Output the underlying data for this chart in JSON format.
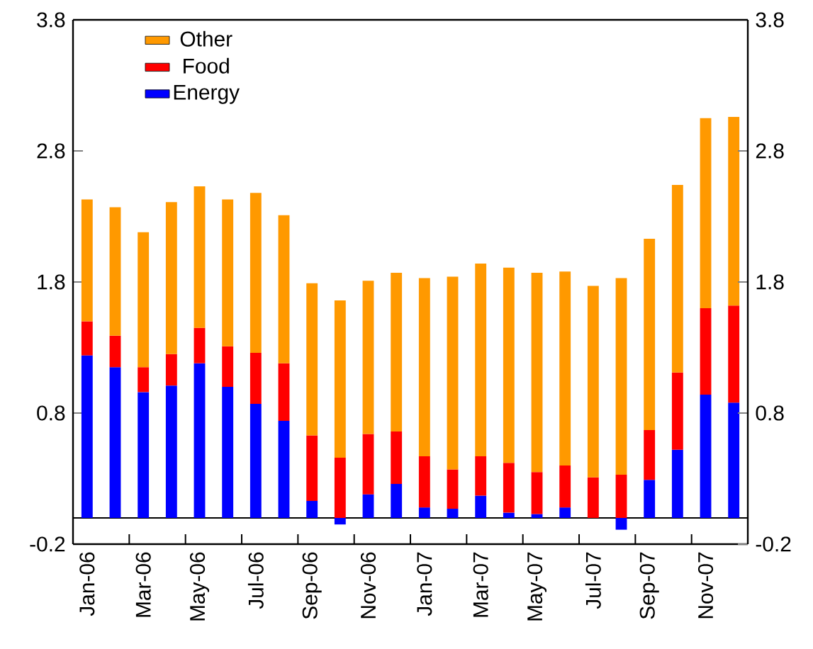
{
  "chart_data": {
    "type": "bar",
    "stacked": true,
    "categories": [
      "Jan-06",
      null,
      "Mar-06",
      null,
      "May-06",
      null,
      "Jul-06",
      null,
      "Sep-06",
      null,
      "Nov-06",
      null,
      "Jan-07",
      null,
      "Mar-07",
      null,
      "May-07",
      null,
      "Jul-07",
      null,
      "Sep-07",
      null,
      "Nov-07",
      null
    ],
    "series": [
      {
        "name": "Energy",
        "color": "#0000ff",
        "values": [
          1.24,
          1.15,
          0.96,
          1.01,
          1.18,
          1.0,
          0.87,
          0.74,
          0.13,
          -0.05,
          0.18,
          0.26,
          0.08,
          0.07,
          0.17,
          0.04,
          0.03,
          0.08,
          0,
          -0.09,
          0.29,
          0.52,
          0.94,
          0.88
        ]
      },
      {
        "name": "Food",
        "color": "#ff0000",
        "values": [
          0.26,
          0.24,
          0.19,
          0.24,
          0.27,
          0.31,
          0.39,
          0.44,
          0.5,
          0.46,
          0.46,
          0.4,
          0.39,
          0.3,
          0.3,
          0.38,
          0.32,
          0.32,
          0.31,
          0.33,
          0.38,
          0.59,
          0.66,
          0.74
        ]
      },
      {
        "name": "Other",
        "color": "#ff9900",
        "values": [
          0.93,
          0.98,
          1.03,
          1.16,
          1.08,
          1.12,
          1.22,
          1.13,
          1.16,
          1.2,
          1.17,
          1.21,
          1.36,
          1.47,
          1.47,
          1.49,
          1.52,
          1.48,
          1.46,
          1.5,
          1.46,
          1.43,
          1.45,
          1.44
        ]
      }
    ],
    "ylim": [
      -0.2,
      3.8
    ],
    "yticks": [
      -0.2,
      0.8,
      1.8,
      2.8,
      3.8
    ],
    "y2lim": [
      -0.2,
      3.8
    ],
    "y2ticks": [
      -0.2,
      0.8,
      1.8,
      2.8,
      3.8
    ],
    "ref_lines": [
      {
        "axis": "y",
        "value": 0,
        "color": "#000000"
      }
    ],
    "legend": "top left",
    "grid": false
  }
}
